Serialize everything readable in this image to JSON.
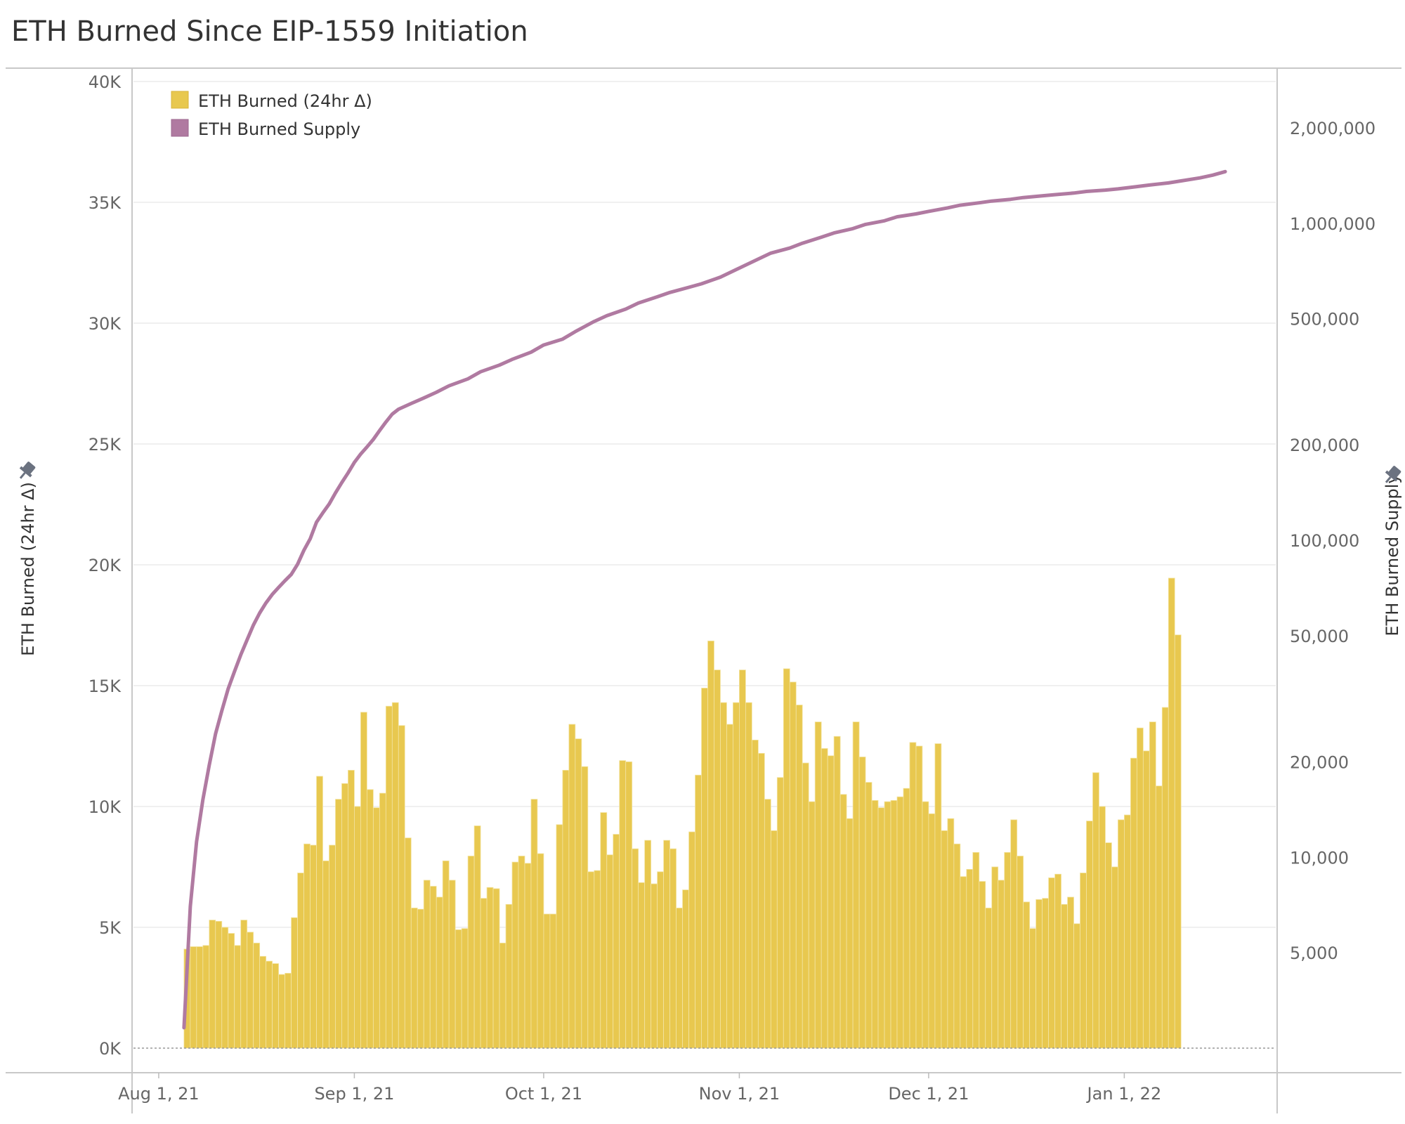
{
  "chart_data": {
    "type": "bar",
    "title": "ETH Burned Since EIP-1559 Initiation",
    "x_tick_labels": [
      "Aug 1, 21",
      "Sep 1, 21",
      "Oct 1, 21",
      "Nov 1, 21",
      "Dec 1, 21",
      "Jan 1, 22"
    ],
    "x_range": [
      "2021-07-28",
      "2022-01-25"
    ],
    "left_axis": {
      "label": "ETH Burned (24hr Δ)",
      "range": [
        0,
        40000
      ],
      "tick_labels": [
        "0K",
        "5K",
        "10K",
        "15K",
        "20K",
        "25K",
        "30K",
        "35K",
        "40K"
      ],
      "tick_values": [
        0,
        5000,
        10000,
        15000,
        20000,
        25000,
        30000,
        35000,
        40000
      ]
    },
    "right_axis": {
      "label": "ETH Burned Supply",
      "scale": "log",
      "range": [
        2500,
        2800000
      ],
      "tick_labels": [
        "5,000",
        "10,000",
        "20,000",
        "50,000",
        "100,000",
        "200,000",
        "500,000",
        "1,000,000",
        "2,000,000"
      ],
      "tick_values": [
        5000,
        10000,
        20000,
        50000,
        100000,
        200000,
        500000,
        1000000,
        2000000
      ]
    },
    "legend": {
      "position": "top-left",
      "items": [
        {
          "name": "ETH Burned (24hr Δ)",
          "color": "#e8c84f"
        },
        {
          "name": "ETH Burned Supply",
          "color": "#b07aa1"
        }
      ]
    },
    "grid": true,
    "series": [
      {
        "name": "ETH Burned (24hr Δ)",
        "type": "bar",
        "axis": "left",
        "color": "#e8c84f",
        "start_date": "2021-08-05",
        "values": [
          4100,
          4200,
          4200,
          4250,
          5300,
          5250,
          5000,
          4750,
          4250,
          5300,
          4800,
          4350,
          3800,
          3600,
          3500,
          3050,
          3100,
          5400,
          7250,
          8450,
          8400,
          11250,
          7750,
          8400,
          10300,
          10950,
          11500,
          10000,
          13900,
          10700,
          9950,
          10550,
          14150,
          14300,
          13350,
          8700,
          5800,
          5750,
          6950,
          6700,
          6250,
          7750,
          6950,
          4900,
          4950,
          7950,
          9200,
          6200,
          6650,
          6600,
          4350,
          5950,
          7700,
          7950,
          7650,
          10300,
          8050,
          5550,
          5550,
          9250,
          11500,
          13400,
          12800,
          11650,
          7300,
          7350,
          9750,
          8000,
          8850,
          11900,
          11850,
          8250,
          6850,
          8600,
          6800,
          7300,
          8600,
          8250,
          5800,
          6550,
          8950,
          11300,
          14900,
          16850,
          15650,
          14300,
          13400,
          14300,
          15650,
          14300,
          12750,
          12200,
          10300,
          9000,
          11200,
          15700,
          15150,
          14200,
          11800,
          10200,
          13500,
          12400,
          12100,
          12900,
          10500,
          9500,
          13500,
          12050,
          11000,
          10250,
          9950,
          10200,
          10250,
          10400,
          10750,
          12650,
          12500,
          10200,
          9700,
          12600,
          9000,
          9500,
          8450,
          7100,
          7400,
          8100,
          6900,
          5800,
          7500,
          6950,
          8100,
          9450,
          7950,
          6050,
          4950,
          6150,
          6200,
          7050,
          7200,
          5950,
          6250,
          5150,
          7250,
          9400,
          11400,
          10000,
          8500,
          7500,
          9450,
          9650,
          12000,
          13250,
          12300,
          13500,
          10850,
          14100,
          19450,
          17100
        ]
      },
      {
        "name": "ETH Burned Supply",
        "type": "line",
        "axis": "right",
        "color": "#b07aa1",
        "points": [
          [
            "2021-08-05",
            2900
          ],
          [
            "2021-08-06",
            7000
          ],
          [
            "2021-08-07",
            11200
          ],
          [
            "2021-08-08",
            15200
          ],
          [
            "2021-08-09",
            19500
          ],
          [
            "2021-08-10",
            24500
          ],
          [
            "2021-08-11",
            29000
          ],
          [
            "2021-08-12",
            34000
          ],
          [
            "2021-08-13",
            38500
          ],
          [
            "2021-08-14",
            43500
          ],
          [
            "2021-08-15",
            48500
          ],
          [
            "2021-08-16",
            54000
          ],
          [
            "2021-08-17",
            59000
          ],
          [
            "2021-08-18",
            63500
          ],
          [
            "2021-08-19",
            67500
          ],
          [
            "2021-08-20",
            71000
          ],
          [
            "2021-08-21",
            74500
          ],
          [
            "2021-08-22",
            78000
          ],
          [
            "2021-08-23",
            84000
          ],
          [
            "2021-08-24",
            93000
          ],
          [
            "2021-08-25",
            101000
          ],
          [
            "2021-08-26",
            114000
          ],
          [
            "2021-08-27",
            122000
          ],
          [
            "2021-08-28",
            130000
          ],
          [
            "2021-08-29",
            141000
          ],
          [
            "2021-08-30",
            152000
          ],
          [
            "2021-08-31",
            163000
          ],
          [
            "2021-09-01",
            176000
          ],
          [
            "2021-09-02",
            187000
          ],
          [
            "2021-09-03",
            197000
          ],
          [
            "2021-09-04",
            208000
          ],
          [
            "2021-09-05",
            222000
          ],
          [
            "2021-09-06",
            236000
          ],
          [
            "2021-09-07",
            250000
          ],
          [
            "2021-09-08",
            259000
          ],
          [
            "2021-09-10",
            270000
          ],
          [
            "2021-09-12",
            281000
          ],
          [
            "2021-09-14",
            293000
          ],
          [
            "2021-09-16",
            307000
          ],
          [
            "2021-09-19",
            323000
          ],
          [
            "2021-09-21",
            340000
          ],
          [
            "2021-09-24",
            357000
          ],
          [
            "2021-09-26",
            372000
          ],
          [
            "2021-09-29",
            392000
          ],
          [
            "2021-10-01",
            413000
          ],
          [
            "2021-10-04",
            431000
          ],
          [
            "2021-10-06",
            455000
          ],
          [
            "2021-10-09",
            490000
          ],
          [
            "2021-10-11",
            511000
          ],
          [
            "2021-10-14",
            536000
          ],
          [
            "2021-10-16",
            560000
          ],
          [
            "2021-10-19",
            586000
          ],
          [
            "2021-10-21",
            605000
          ],
          [
            "2021-10-24",
            628000
          ],
          [
            "2021-10-26",
            644000
          ],
          [
            "2021-10-29",
            676000
          ],
          [
            "2021-11-01",
            722000
          ],
          [
            "2021-11-04",
            771000
          ],
          [
            "2021-11-06",
            805000
          ],
          [
            "2021-11-09",
            835000
          ],
          [
            "2021-11-11",
            865000
          ],
          [
            "2021-11-14",
            904000
          ],
          [
            "2021-11-16",
            932000
          ],
          [
            "2021-11-19",
            962000
          ],
          [
            "2021-11-21",
            992000
          ],
          [
            "2021-11-24",
            1018000
          ],
          [
            "2021-11-26",
            1048000
          ],
          [
            "2021-11-29",
            1070000
          ],
          [
            "2021-12-01",
            1090000
          ],
          [
            "2021-12-04",
            1118000
          ],
          [
            "2021-12-06",
            1140000
          ],
          [
            "2021-12-09",
            1160000
          ],
          [
            "2021-12-11",
            1175000
          ],
          [
            "2021-12-14",
            1190000
          ],
          [
            "2021-12-16",
            1205000
          ],
          [
            "2021-12-19",
            1220000
          ],
          [
            "2021-12-21",
            1231000
          ],
          [
            "2021-12-24",
            1245000
          ],
          [
            "2021-12-26",
            1260000
          ],
          [
            "2021-12-29",
            1272000
          ],
          [
            "2021-12-31",
            1283000
          ],
          [
            "2022-01-03",
            1305000
          ],
          [
            "2022-01-05",
            1320000
          ],
          [
            "2022-01-08",
            1340000
          ],
          [
            "2022-01-10",
            1360000
          ],
          [
            "2022-01-13",
            1390000
          ],
          [
            "2022-01-15",
            1418000
          ],
          [
            "2022-01-17",
            1455000
          ]
        ]
      }
    ]
  }
}
